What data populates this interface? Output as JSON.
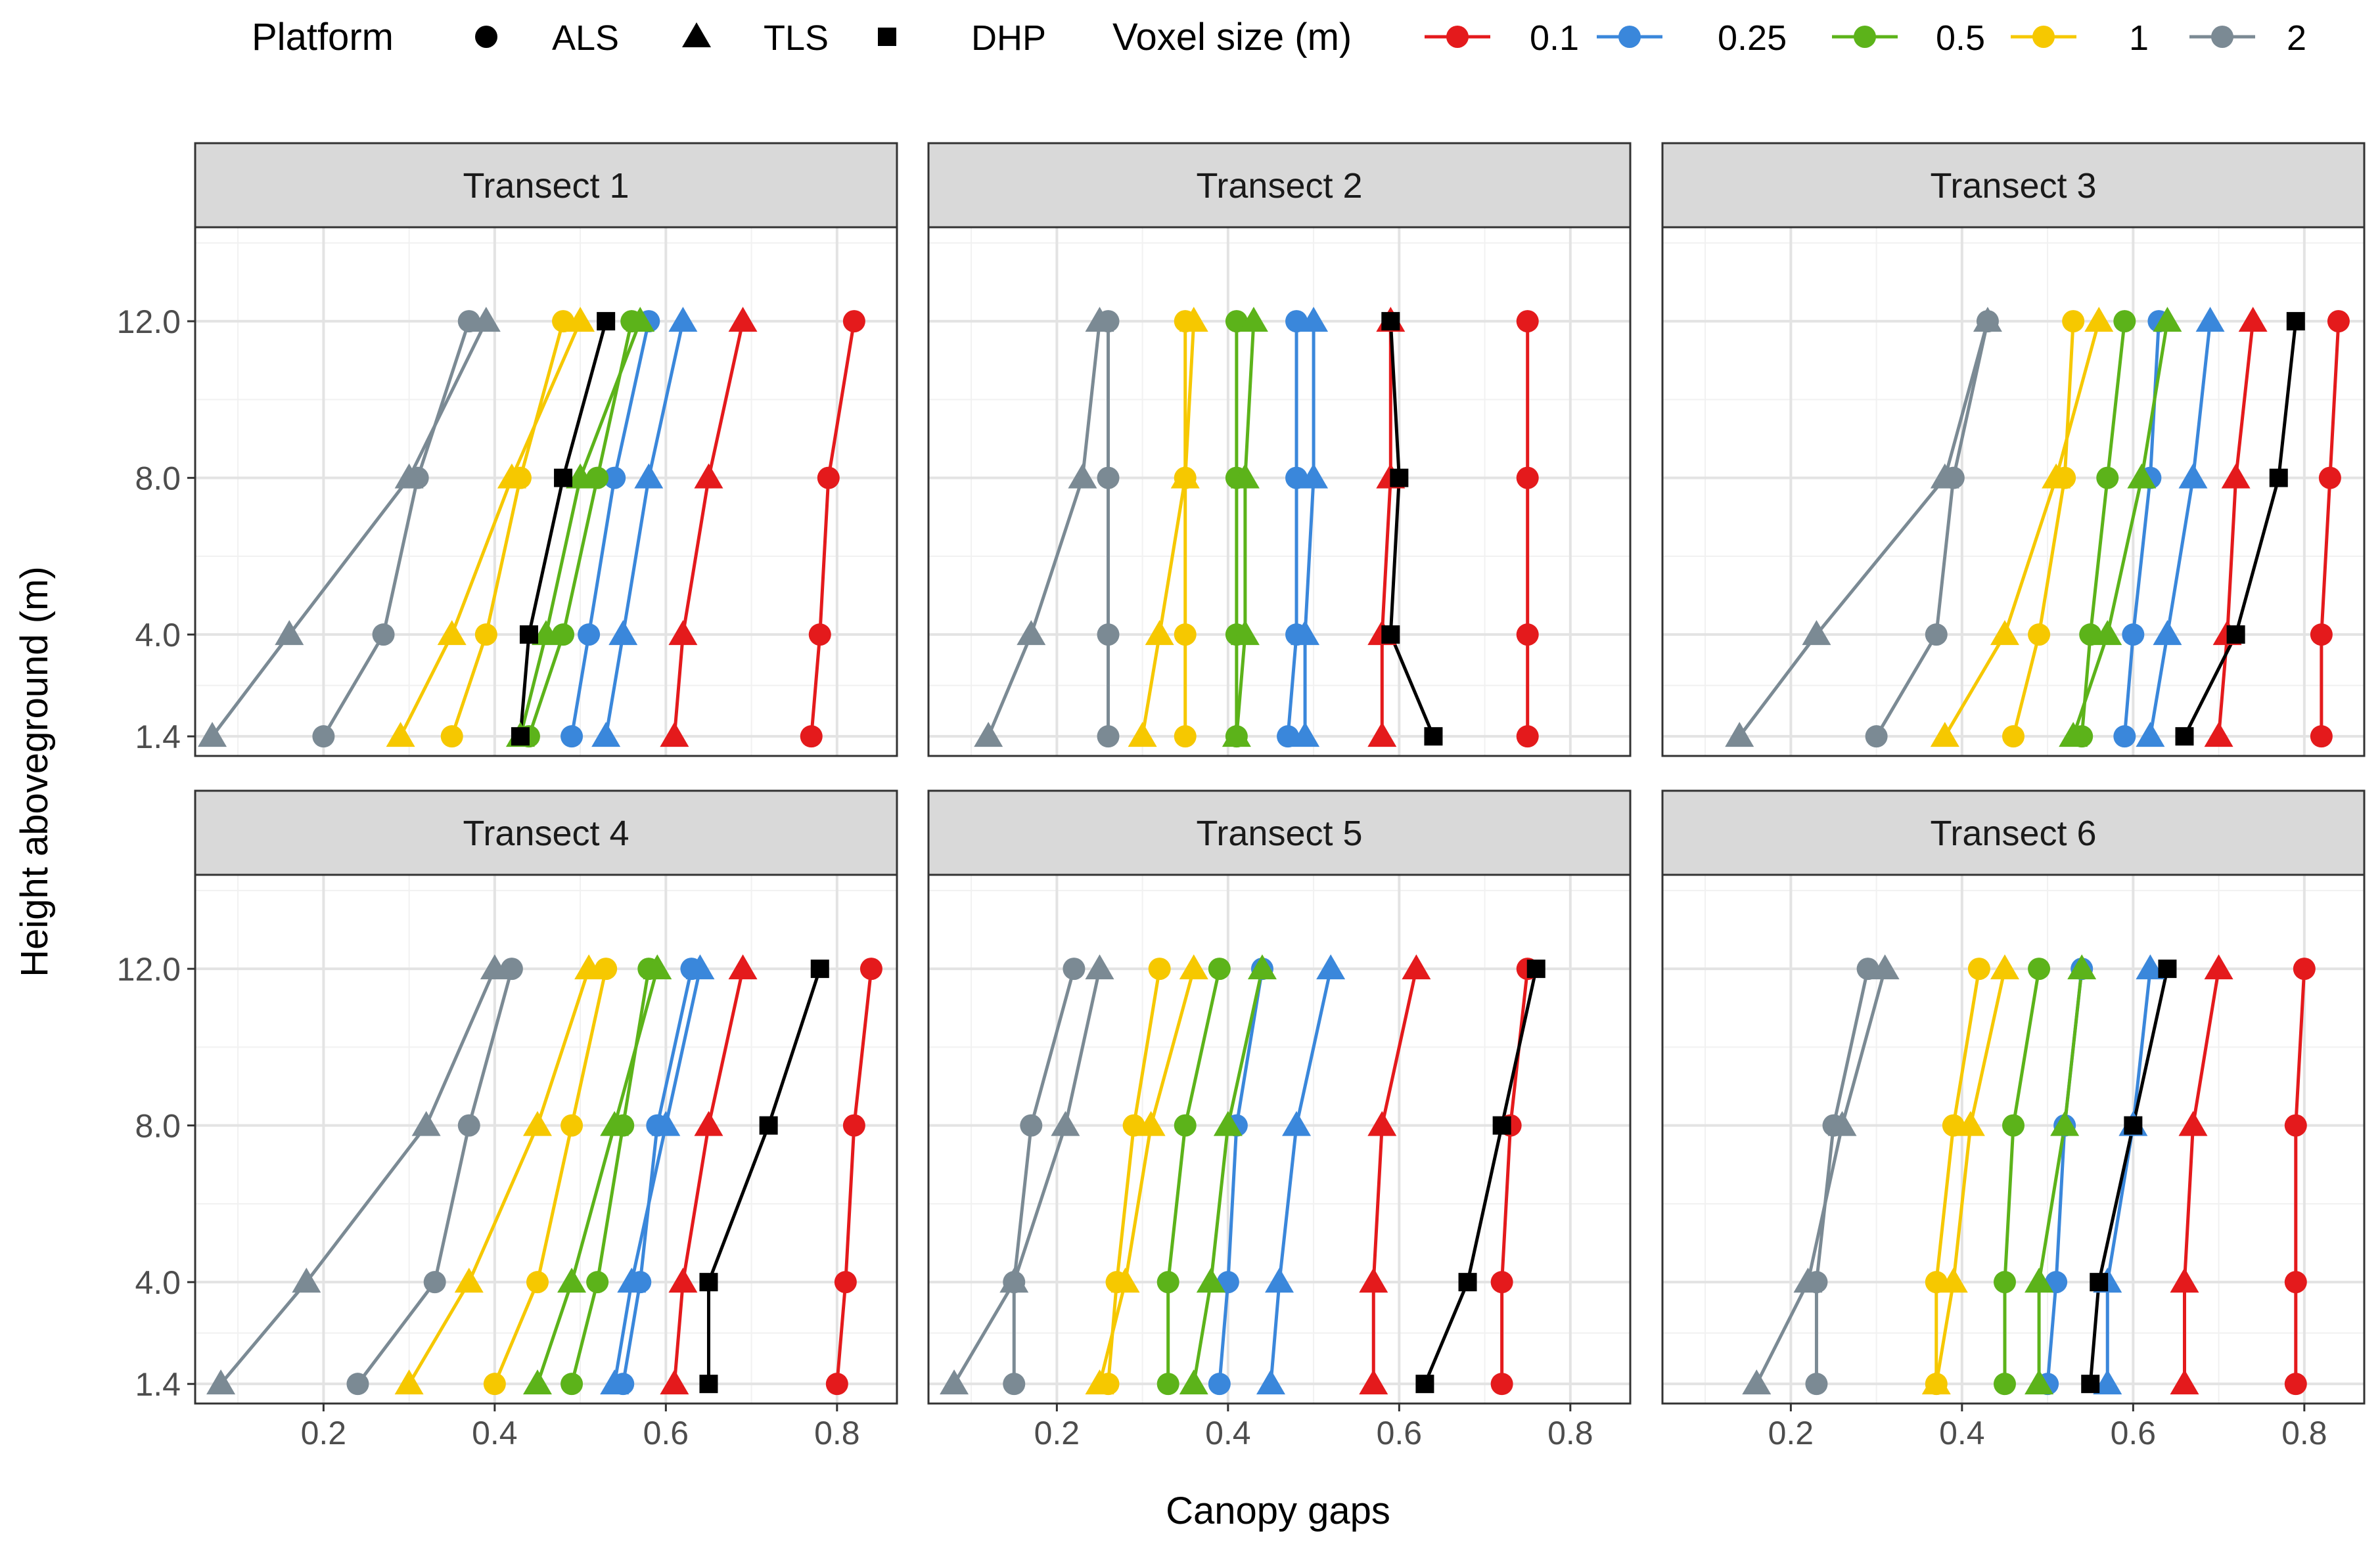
{
  "chart_data": {
    "type": "line",
    "xlabel": "Canopy gaps",
    "ylabel": "Height aboveground (m)",
    "xlim": [
      0.05,
      0.87
    ],
    "xticks": [
      "0.2",
      "0.4",
      "0.6",
      "0.8"
    ],
    "xtick_values": [
      0.2,
      0.4,
      0.6,
      0.8
    ],
    "yticks": [
      "1.4",
      "4.0",
      "8.0",
      "12.0"
    ],
    "ytick_values": [
      1.4,
      4.0,
      8.0,
      12.0
    ],
    "ylim": [
      0.9,
      14.4
    ],
    "grid": true,
    "legend": {
      "position": "top",
      "platform_title": "Platform",
      "platform_entries": [
        {
          "label": "ALS",
          "shape": "circle"
        },
        {
          "label": "TLS",
          "shape": "triangle"
        },
        {
          "label": "DHP",
          "shape": "square"
        }
      ],
      "voxel_title": "Voxel size (m)",
      "voxel_entries": [
        {
          "label": "0.1",
          "color": "#E41A1C"
        },
        {
          "label": "0.25",
          "color": "#3A87DB"
        },
        {
          "label": "0.5",
          "color": "#5CB31A"
        },
        {
          "label": "1",
          "color": "#F6C800"
        },
        {
          "label": "2",
          "color": "#7B8A94"
        }
      ]
    },
    "dhp_color": "#000000",
    "heights": [
      1.4,
      4.0,
      8.0,
      12.0
    ],
    "panels": [
      {
        "title": "Transect 1",
        "series": [
          {
            "platform": "ALS",
            "voxel": "0.1",
            "values": [
              0.77,
              0.78,
              0.79,
              0.82
            ]
          },
          {
            "platform": "TLS",
            "voxel": "0.1",
            "values": [
              0.61,
              0.62,
              0.65,
              0.69
            ]
          },
          {
            "platform": "ALS",
            "voxel": "0.25",
            "values": [
              0.49,
              0.51,
              0.54,
              0.58
            ]
          },
          {
            "platform": "TLS",
            "voxel": "0.25",
            "values": [
              0.53,
              0.55,
              0.58,
              0.62
            ]
          },
          {
            "platform": "ALS",
            "voxel": "0.5",
            "values": [
              0.44,
              0.48,
              0.52,
              0.56
            ]
          },
          {
            "platform": "TLS",
            "voxel": "0.5",
            "values": [
              0.43,
              0.46,
              0.5,
              0.57
            ]
          },
          {
            "platform": "ALS",
            "voxel": "1",
            "values": [
              0.35,
              0.39,
              0.43,
              0.48
            ]
          },
          {
            "platform": "TLS",
            "voxel": "1",
            "values": [
              0.29,
              0.35,
              0.42,
              0.5
            ]
          },
          {
            "platform": "ALS",
            "voxel": "2",
            "values": [
              0.2,
              0.27,
              0.31,
              0.37
            ]
          },
          {
            "platform": "TLS",
            "voxel": "2",
            "values": [
              0.07,
              0.16,
              0.3,
              0.39
            ]
          },
          {
            "platform": "DHP",
            "voxel": "",
            "values": [
              0.43,
              0.44,
              0.48,
              0.53
            ]
          }
        ]
      },
      {
        "title": "Transect 2",
        "series": [
          {
            "platform": "ALS",
            "voxel": "0.1",
            "values": [
              0.75,
              0.75,
              0.75,
              0.75
            ]
          },
          {
            "platform": "TLS",
            "voxel": "0.1",
            "values": [
              0.58,
              0.58,
              0.59,
              0.59
            ]
          },
          {
            "platform": "ALS",
            "voxel": "0.25",
            "values": [
              0.47,
              0.48,
              0.48,
              0.48
            ]
          },
          {
            "platform": "TLS",
            "voxel": "0.25",
            "values": [
              0.49,
              0.49,
              0.5,
              0.5
            ]
          },
          {
            "platform": "ALS",
            "voxel": "0.5",
            "values": [
              0.41,
              0.41,
              0.41,
              0.41
            ]
          },
          {
            "platform": "TLS",
            "voxel": "0.5",
            "values": [
              0.41,
              0.42,
              0.42,
              0.43
            ]
          },
          {
            "platform": "ALS",
            "voxel": "1",
            "values": [
              0.35,
              0.35,
              0.35,
              0.35
            ]
          },
          {
            "platform": "TLS",
            "voxel": "1",
            "values": [
              0.3,
              0.32,
              0.35,
              0.36
            ]
          },
          {
            "platform": "ALS",
            "voxel": "2",
            "values": [
              0.26,
              0.26,
              0.26,
              0.26
            ]
          },
          {
            "platform": "TLS",
            "voxel": "2",
            "values": [
              0.12,
              0.17,
              0.23,
              0.25
            ]
          },
          {
            "platform": "DHP",
            "voxel": "",
            "values": [
              0.64,
              0.59,
              0.6,
              0.59
            ]
          }
        ]
      },
      {
        "title": "Transect 3",
        "series": [
          {
            "platform": "ALS",
            "voxel": "0.1",
            "values": [
              0.82,
              0.82,
              0.83,
              0.84
            ]
          },
          {
            "platform": "TLS",
            "voxel": "0.1",
            "values": [
              0.7,
              0.71,
              0.72,
              0.74
            ]
          },
          {
            "platform": "ALS",
            "voxel": "0.25",
            "values": [
              0.59,
              0.6,
              0.62,
              0.63
            ]
          },
          {
            "platform": "TLS",
            "voxel": "0.25",
            "values": [
              0.62,
              0.64,
              0.67,
              0.69
            ]
          },
          {
            "platform": "ALS",
            "voxel": "0.5",
            "values": [
              0.54,
              0.55,
              0.57,
              0.59
            ]
          },
          {
            "platform": "TLS",
            "voxel": "0.5",
            "values": [
              0.53,
              0.57,
              0.61,
              0.64
            ]
          },
          {
            "platform": "ALS",
            "voxel": "1",
            "values": [
              0.46,
              0.49,
              0.52,
              0.53
            ]
          },
          {
            "platform": "TLS",
            "voxel": "1",
            "values": [
              0.38,
              0.45,
              0.51,
              0.56
            ]
          },
          {
            "platform": "ALS",
            "voxel": "2",
            "values": [
              0.3,
              0.37,
              0.39,
              0.43
            ]
          },
          {
            "platform": "TLS",
            "voxel": "2",
            "values": [
              0.14,
              0.23,
              0.38,
              0.43
            ]
          },
          {
            "platform": "DHP",
            "voxel": "",
            "values": [
              0.66,
              0.72,
              0.77,
              0.79
            ]
          }
        ]
      },
      {
        "title": "Transect 4",
        "series": [
          {
            "platform": "ALS",
            "voxel": "0.1",
            "values": [
              0.8,
              0.81,
              0.82,
              0.84
            ]
          },
          {
            "platform": "TLS",
            "voxel": "0.1",
            "values": [
              0.61,
              0.62,
              0.65,
              0.69
            ]
          },
          {
            "platform": "ALS",
            "voxel": "0.25",
            "values": [
              0.55,
              0.57,
              0.59,
              0.63
            ]
          },
          {
            "platform": "TLS",
            "voxel": "0.25",
            "values": [
              0.54,
              0.56,
              0.6,
              0.64
            ]
          },
          {
            "platform": "ALS",
            "voxel": "0.5",
            "values": [
              0.49,
              0.52,
              0.55,
              0.58
            ]
          },
          {
            "platform": "TLS",
            "voxel": "0.5",
            "values": [
              0.45,
              0.49,
              0.54,
              0.59
            ]
          },
          {
            "platform": "ALS",
            "voxel": "1",
            "values": [
              0.4,
              0.45,
              0.49,
              0.53
            ]
          },
          {
            "platform": "TLS",
            "voxel": "1",
            "values": [
              0.3,
              0.37,
              0.45,
              0.51
            ]
          },
          {
            "platform": "ALS",
            "voxel": "2",
            "values": [
              0.24,
              0.33,
              0.37,
              0.42
            ]
          },
          {
            "platform": "TLS",
            "voxel": "2",
            "values": [
              0.08,
              0.18,
              0.32,
              0.4
            ]
          },
          {
            "platform": "DHP",
            "voxel": "",
            "values": [
              0.65,
              0.65,
              0.72,
              0.78
            ]
          }
        ]
      },
      {
        "title": "Transect 5",
        "series": [
          {
            "platform": "ALS",
            "voxel": "0.1",
            "values": [
              0.72,
              0.72,
              0.73,
              0.75
            ]
          },
          {
            "platform": "TLS",
            "voxel": "0.1",
            "values": [
              0.57,
              0.57,
              0.58,
              0.62
            ]
          },
          {
            "platform": "ALS",
            "voxel": "0.25",
            "values": [
              0.39,
              0.4,
              0.41,
              0.44
            ]
          },
          {
            "platform": "TLS",
            "voxel": "0.25",
            "values": [
              0.45,
              0.46,
              0.48,
              0.52
            ]
          },
          {
            "platform": "ALS",
            "voxel": "0.5",
            "values": [
              0.33,
              0.33,
              0.35,
              0.39
            ]
          },
          {
            "platform": "TLS",
            "voxel": "0.5",
            "values": [
              0.36,
              0.38,
              0.4,
              0.44
            ]
          },
          {
            "platform": "ALS",
            "voxel": "1",
            "values": [
              0.26,
              0.27,
              0.29,
              0.32
            ]
          },
          {
            "platform": "TLS",
            "voxel": "1",
            "values": [
              0.25,
              0.28,
              0.31,
              0.36
            ]
          },
          {
            "platform": "ALS",
            "voxel": "2",
            "values": [
              0.15,
              0.15,
              0.17,
              0.22
            ]
          },
          {
            "platform": "TLS",
            "voxel": "2",
            "values": [
              0.08,
              0.15,
              0.21,
              0.25
            ]
          },
          {
            "platform": "DHP",
            "voxel": "",
            "values": [
              0.63,
              0.68,
              0.72,
              0.76
            ]
          }
        ]
      },
      {
        "title": "Transect 6",
        "series": [
          {
            "platform": "ALS",
            "voxel": "0.1",
            "values": [
              0.79,
              0.79,
              0.79,
              0.8
            ]
          },
          {
            "platform": "TLS",
            "voxel": "0.1",
            "values": [
              0.66,
              0.66,
              0.67,
              0.7
            ]
          },
          {
            "platform": "ALS",
            "voxel": "0.25",
            "values": [
              0.5,
              0.51,
              0.52,
              0.54
            ]
          },
          {
            "platform": "TLS",
            "voxel": "0.25",
            "values": [
              0.57,
              0.57,
              0.6,
              0.62
            ]
          },
          {
            "platform": "ALS",
            "voxel": "0.5",
            "values": [
              0.45,
              0.45,
              0.46,
              0.49
            ]
          },
          {
            "platform": "TLS",
            "voxel": "0.5",
            "values": [
              0.49,
              0.49,
              0.52,
              0.54
            ]
          },
          {
            "platform": "ALS",
            "voxel": "1",
            "values": [
              0.37,
              0.37,
              0.39,
              0.42
            ]
          },
          {
            "platform": "TLS",
            "voxel": "1",
            "values": [
              0.37,
              0.39,
              0.41,
              0.45
            ]
          },
          {
            "platform": "ALS",
            "voxel": "2",
            "values": [
              0.23,
              0.23,
              0.25,
              0.29
            ]
          },
          {
            "platform": "TLS",
            "voxel": "2",
            "values": [
              0.16,
              0.22,
              0.26,
              0.31
            ]
          },
          {
            "platform": "DHP",
            "voxel": "",
            "values": [
              0.55,
              0.56,
              0.6,
              0.64
            ]
          }
        ]
      }
    ]
  }
}
